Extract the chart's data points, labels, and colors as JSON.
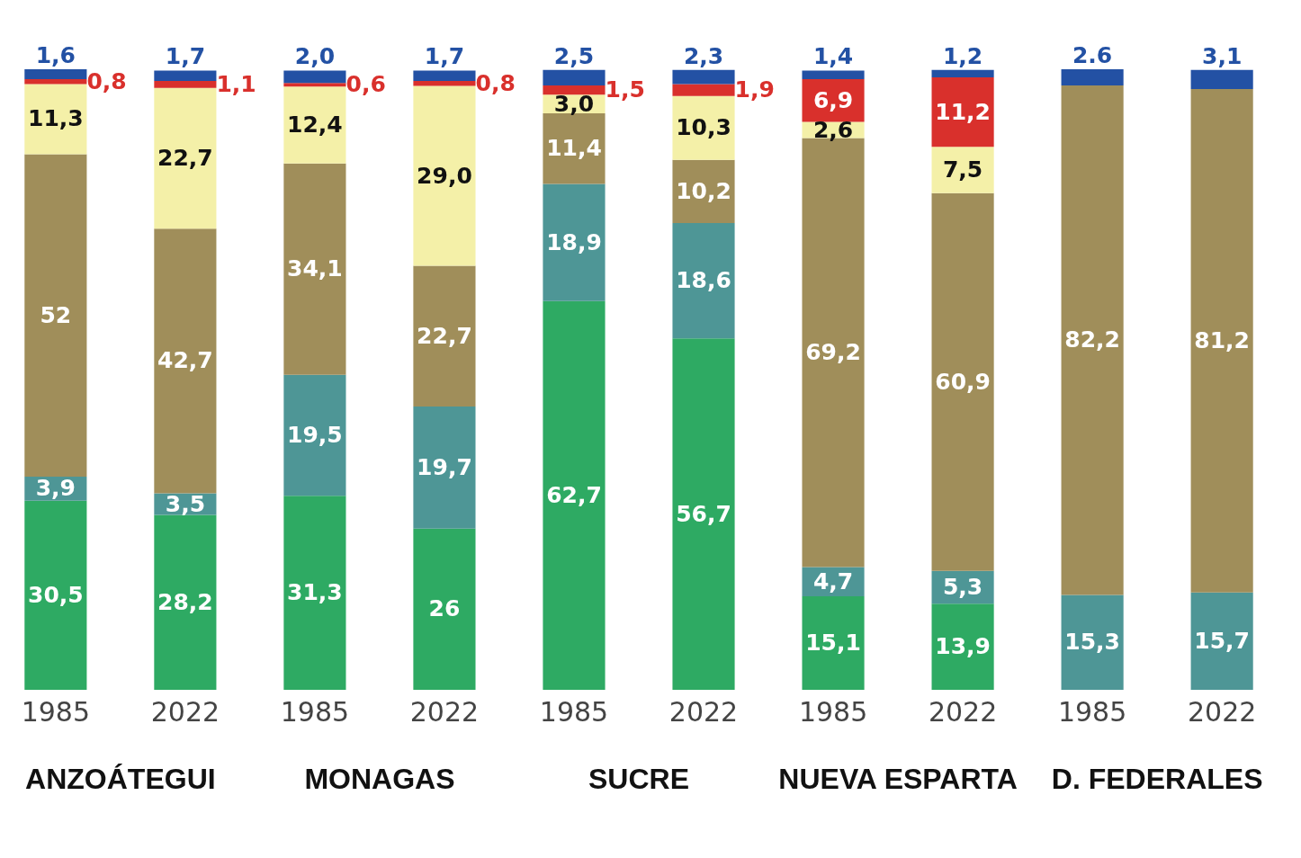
{
  "chart_data": {
    "type": "bar",
    "stacked": true,
    "categories": [
      "1985",
      "2022",
      "1985",
      "2022",
      "1985",
      "2022",
      "1985",
      "2022",
      "1985",
      "2022"
    ],
    "annotations": [
      "ANZOÁTEGUI",
      "MONAGAS",
      "SUCRE",
      "NUEVA ESPARTA",
      "D. FEDERALES"
    ],
    "series": [
      {
        "color": "#2eaa63",
        "values": [
          30.5,
          28.2,
          31.3,
          26,
          62.7,
          56.7,
          15.1,
          13.9,
          null,
          null
        ],
        "value_labels": [
          "30,5",
          "28,2",
          "31,3",
          "26",
          "62,7",
          "56,7",
          "15,1",
          "13,9",
          null,
          null
        ]
      },
      {
        "color": "#4e9696",
        "values": [
          3.9,
          3.5,
          19.5,
          19.7,
          18.9,
          18.6,
          4.7,
          5.3,
          15.3,
          15.7
        ],
        "value_labels": [
          "3,9",
          "3,5",
          "19,5",
          "19,7",
          "18,9",
          "18,6",
          "4,7",
          "5,3",
          "15,3",
          "15,7"
        ]
      },
      {
        "color": "#a08e5a",
        "values": [
          52,
          42.7,
          34.1,
          22.7,
          11.4,
          10.2,
          69.2,
          60.9,
          82.2,
          81.2
        ],
        "value_labels": [
          "52",
          "42,7",
          "34,1",
          "22,7",
          "11,4",
          "10,2",
          "69,2",
          "60,9",
          "82,2",
          "81,2"
        ]
      },
      {
        "color": "#f4f0a8",
        "values": [
          11.3,
          22.7,
          12.4,
          29.0,
          3.0,
          10.3,
          2.6,
          7.5,
          null,
          null
        ],
        "value_labels": [
          "11,3",
          "22,7",
          "12,4",
          "29,0",
          "3,0",
          "10,3",
          "2,6",
          "7,5",
          null,
          null
        ]
      },
      {
        "color": "#d9302c",
        "values": [
          0.8,
          1.1,
          0.6,
          0.8,
          1.5,
          1.9,
          6.9,
          11.2,
          null,
          null
        ],
        "value_labels": [
          "0,8",
          "1,1",
          "0,6",
          "0,8",
          "1,5",
          "1,9",
          "6,9",
          "11,2",
          null,
          null
        ]
      },
      {
        "color": "#2351a4",
        "values": [
          1.6,
          1.7,
          2.0,
          1.7,
          2.5,
          2.3,
          1.4,
          1.2,
          2.6,
          3.1
        ],
        "value_labels": [
          "1,6",
          "1,7",
          "2,0",
          "1,7",
          "2,5",
          "2,3",
          "1,4",
          "1,2",
          "2.6",
          "3,1"
        ]
      }
    ]
  }
}
